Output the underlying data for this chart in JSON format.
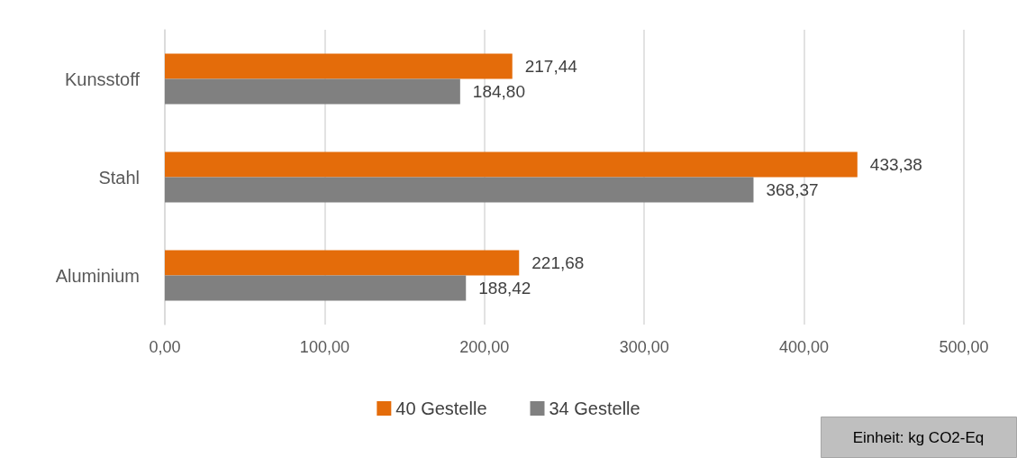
{
  "chart_data": {
    "type": "bar",
    "orientation": "horizontal",
    "categories": [
      "Kunsstoff",
      "Stahl",
      "Aluminium"
    ],
    "series": [
      {
        "name": "40 Gestelle",
        "color": "#e46c0a",
        "values": [
          217.44,
          433.38,
          221.68
        ],
        "value_labels": [
          "217,44",
          "433,38",
          "221,68"
        ]
      },
      {
        "name": "34 Gestelle",
        "color": "#808080",
        "values": [
          184.8,
          368.37,
          188.42
        ],
        "value_labels": [
          "184,80",
          "368,37",
          "188,42"
        ]
      }
    ],
    "xlim": [
      0,
      500
    ],
    "xticks": [
      {
        "value": 0,
        "label": "0,00"
      },
      {
        "value": 100,
        "label": "100,00"
      },
      {
        "value": 200,
        "label": "200,00"
      },
      {
        "value": 300,
        "label": "300,00"
      },
      {
        "value": 400,
        "label": "400,00"
      },
      {
        "value": 500,
        "label": "500,00"
      }
    ],
    "grid": "x",
    "legend": "bottom",
    "annotations": [
      "Einheit: kg CO2-Eq"
    ]
  }
}
